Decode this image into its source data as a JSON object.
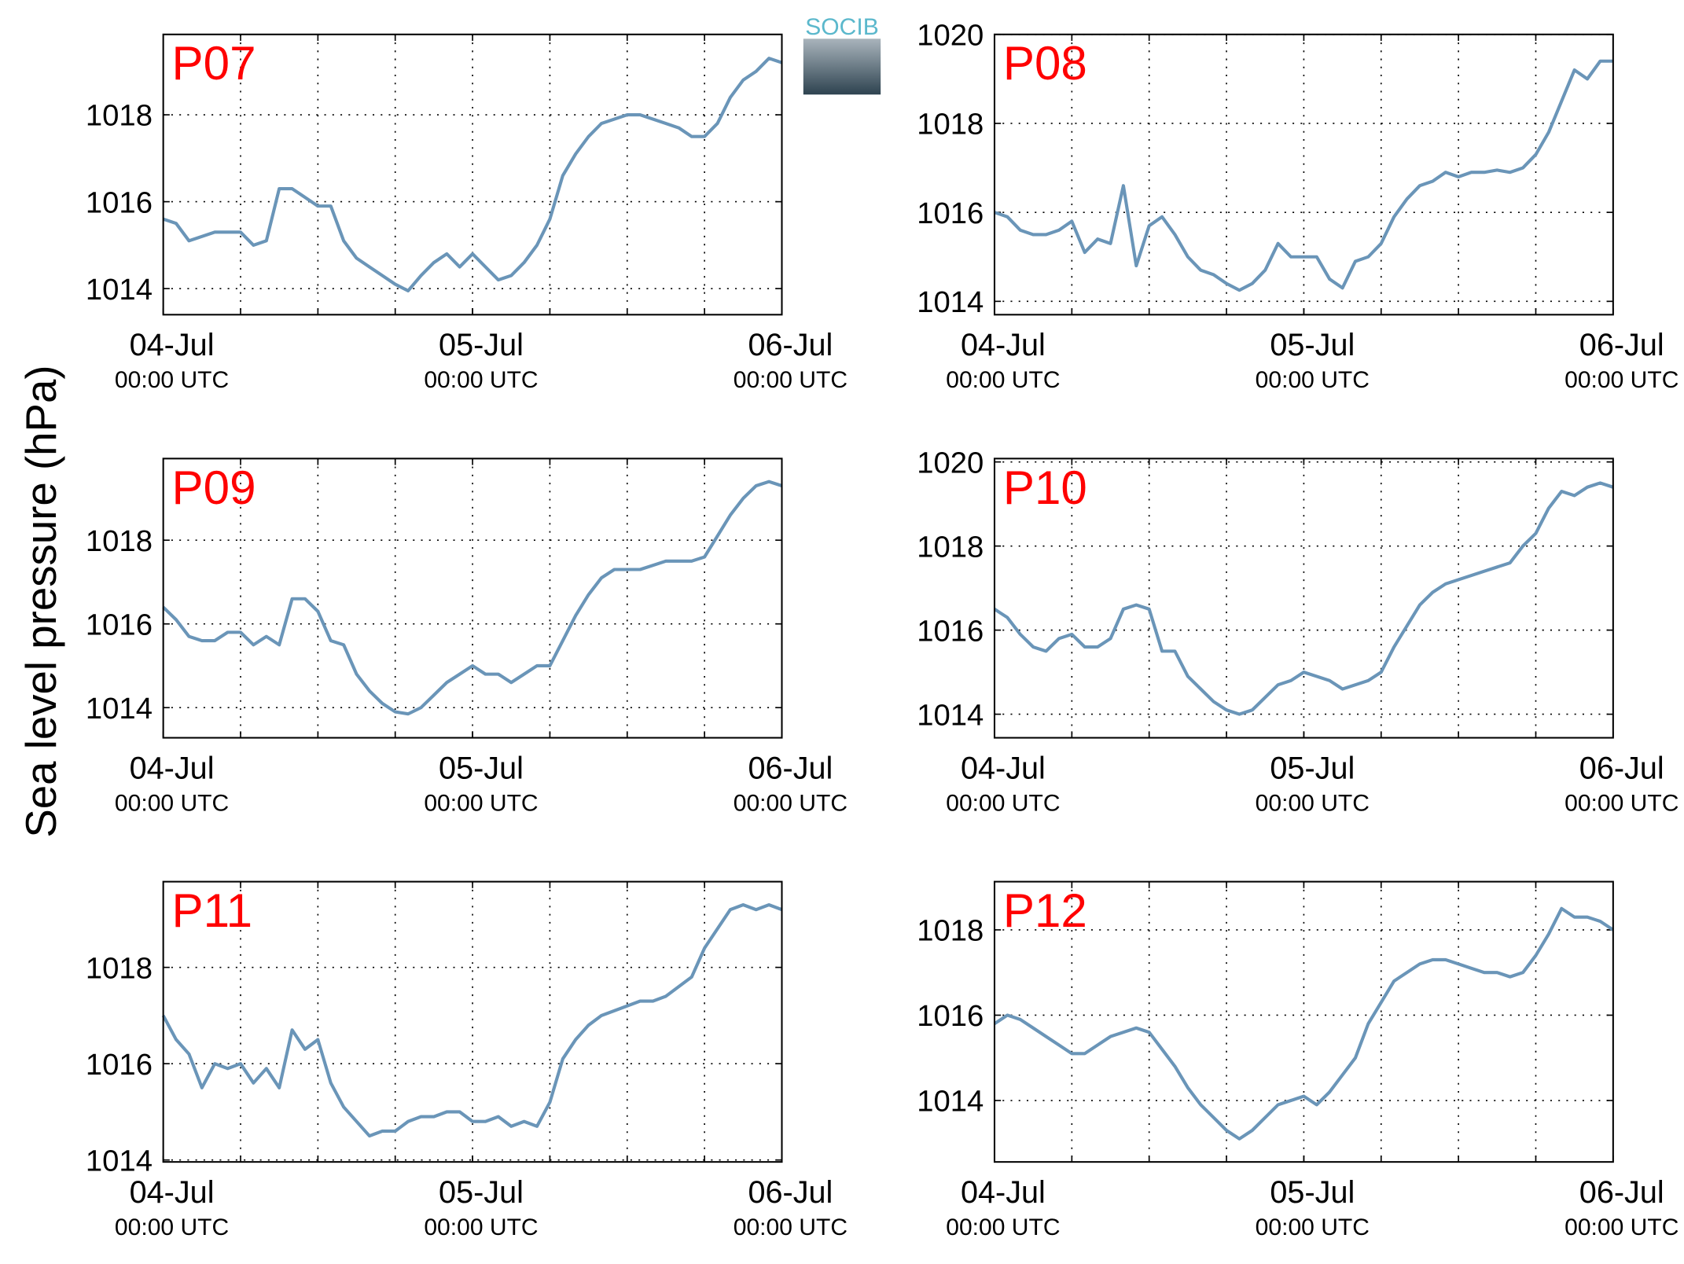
{
  "ylabel": "Sea level pressure (hPa)",
  "logo": "SOCIB",
  "chart_data": [
    {
      "type": "line",
      "title": "P07",
      "color": "#6a95b8",
      "grid": true,
      "x": [
        0,
        1,
        2,
        3,
        4,
        5,
        6,
        7,
        8,
        9,
        10,
        11,
        12,
        13,
        14,
        15,
        16,
        17,
        18,
        19,
        20,
        21,
        22,
        23,
        24,
        25,
        26,
        27,
        28,
        29,
        30,
        31,
        32,
        33,
        34,
        35,
        36,
        37,
        38,
        39,
        40,
        41,
        42,
        43,
        44,
        45,
        46,
        47,
        48
      ],
      "values": [
        1015.6,
        1015.5,
        1015.1,
        1015.2,
        1015.3,
        1015.3,
        1015.3,
        1015.0,
        1015.1,
        1016.3,
        1016.3,
        1016.1,
        1015.9,
        1015.9,
        1015.1,
        1014.7,
        1014.5,
        1014.3,
        1014.1,
        1013.95,
        1014.3,
        1014.6,
        1014.8,
        1014.5,
        1014.8,
        1014.5,
        1014.2,
        1014.3,
        1014.6,
        1015.0,
        1015.6,
        1016.6,
        1017.1,
        1017.5,
        1017.8,
        1017.9,
        1018.0,
        1018.0,
        1017.9,
        1017.8,
        1017.7,
        1017.5,
        1017.5,
        1017.8,
        1018.4,
        1018.8,
        1019.0,
        1019.3,
        1019.2
      ],
      "xlim": [
        0,
        48
      ],
      "xticks": [
        {
          "value": 0,
          "label": "04-Jul",
          "sublabel": "00:00 UTC"
        },
        {
          "value": 24,
          "label": "05-Jul",
          "sublabel": "00:00 UTC"
        },
        {
          "value": 48,
          "label": "06-Jul",
          "sublabel": "00:00 UTC"
        }
      ],
      "xgrid": [
        6,
        12,
        18,
        24,
        30,
        36,
        42
      ],
      "ylim": [
        1013.4,
        1019.85
      ],
      "yticks": [
        1014,
        1016,
        1018
      ]
    },
    {
      "type": "line",
      "title": "P08",
      "color": "#6a95b8",
      "grid": true,
      "x": [
        0,
        1,
        2,
        3,
        4,
        5,
        6,
        7,
        8,
        9,
        10,
        11,
        12,
        13,
        14,
        15,
        16,
        17,
        18,
        19,
        20,
        21,
        22,
        23,
        24,
        25,
        26,
        27,
        28,
        29,
        30,
        31,
        32,
        33,
        34,
        35,
        36,
        37,
        38,
        39,
        40,
        41,
        42,
        43,
        44,
        45,
        46,
        47,
        48
      ],
      "values": [
        1016.0,
        1015.9,
        1015.6,
        1015.5,
        1015.5,
        1015.6,
        1015.8,
        1015.1,
        1015.4,
        1015.3,
        1016.6,
        1014.8,
        1015.7,
        1015.9,
        1015.5,
        1015.0,
        1014.7,
        1014.6,
        1014.4,
        1014.25,
        1014.4,
        1014.7,
        1015.3,
        1015.0,
        1015.0,
        1015.0,
        1014.5,
        1014.3,
        1014.9,
        1015.0,
        1015.3,
        1015.9,
        1016.3,
        1016.6,
        1016.7,
        1016.9,
        1016.8,
        1016.9,
        1016.9,
        1016.95,
        1016.9,
        1017.0,
        1017.3,
        1017.8,
        1018.5,
        1019.2,
        1019.0,
        1019.4,
        1019.4
      ],
      "xlim": [
        0,
        48
      ],
      "xticks": [
        {
          "value": 0,
          "label": "04-Jul",
          "sublabel": "00:00 UTC"
        },
        {
          "value": 24,
          "label": "05-Jul",
          "sublabel": "00:00 UTC"
        },
        {
          "value": 48,
          "label": "06-Jul",
          "sublabel": "00:00 UTC"
        }
      ],
      "xgrid": [
        6,
        12,
        18,
        24,
        30,
        36,
        42
      ],
      "ylim": [
        1013.7,
        1020
      ],
      "yticks": [
        1014,
        1016,
        1018,
        1020
      ]
    },
    {
      "type": "line",
      "title": "P09",
      "color": "#6a95b8",
      "grid": true,
      "x": [
        0,
        1,
        2,
        3,
        4,
        5,
        6,
        7,
        8,
        9,
        10,
        11,
        12,
        13,
        14,
        15,
        16,
        17,
        18,
        19,
        20,
        21,
        22,
        23,
        24,
        25,
        26,
        27,
        28,
        29,
        30,
        31,
        32,
        33,
        34,
        35,
        36,
        37,
        38,
        39,
        40,
        41,
        42,
        43,
        44,
        45,
        46,
        47,
        48
      ],
      "values": [
        1016.4,
        1016.1,
        1015.7,
        1015.6,
        1015.6,
        1015.8,
        1015.8,
        1015.5,
        1015.7,
        1015.5,
        1016.6,
        1016.6,
        1016.3,
        1015.6,
        1015.5,
        1014.8,
        1014.4,
        1014.1,
        1013.9,
        1013.85,
        1014.0,
        1014.3,
        1014.6,
        1014.8,
        1015.0,
        1014.8,
        1014.8,
        1014.6,
        1014.8,
        1015.0,
        1015.0,
        1015.6,
        1016.2,
        1016.7,
        1017.1,
        1017.3,
        1017.3,
        1017.3,
        1017.4,
        1017.5,
        1017.5,
        1017.5,
        1017.6,
        1018.1,
        1018.6,
        1019.0,
        1019.3,
        1019.4,
        1019.3
      ],
      "xlim": [
        0,
        48
      ],
      "xticks": [
        {
          "value": 0,
          "label": "04-Jul",
          "sublabel": "00:00 UTC"
        },
        {
          "value": 24,
          "label": "05-Jul",
          "sublabel": "00:00 UTC"
        },
        {
          "value": 48,
          "label": "06-Jul",
          "sublabel": "00:00 UTC"
        }
      ],
      "xgrid": [
        6,
        12,
        18,
        24,
        30,
        36,
        42
      ],
      "ylim": [
        1013.28,
        1019.95
      ],
      "yticks": [
        1014,
        1016,
        1018
      ]
    },
    {
      "type": "line",
      "title": "P10",
      "color": "#6a95b8",
      "grid": true,
      "x": [
        0,
        1,
        2,
        3,
        4,
        5,
        6,
        7,
        8,
        9,
        10,
        11,
        12,
        13,
        14,
        15,
        16,
        17,
        18,
        19,
        20,
        21,
        22,
        23,
        24,
        25,
        26,
        27,
        28,
        29,
        30,
        31,
        32,
        33,
        34,
        35,
        36,
        37,
        38,
        39,
        40,
        41,
        42,
        43,
        44,
        45,
        46,
        47,
        48
      ],
      "values": [
        1016.5,
        1016.3,
        1015.9,
        1015.6,
        1015.5,
        1015.8,
        1015.9,
        1015.6,
        1015.6,
        1015.8,
        1016.5,
        1016.6,
        1016.5,
        1015.5,
        1015.5,
        1014.9,
        1014.6,
        1014.3,
        1014.1,
        1014.0,
        1014.1,
        1014.4,
        1014.7,
        1014.8,
        1015.0,
        1014.9,
        1014.8,
        1014.6,
        1014.7,
        1014.8,
        1015.0,
        1015.6,
        1016.1,
        1016.6,
        1016.9,
        1017.1,
        1017.2,
        1017.3,
        1017.4,
        1017.5,
        1017.6,
        1018.0,
        1018.3,
        1018.9,
        1019.3,
        1019.2,
        1019.4,
        1019.5,
        1019.4
      ],
      "xlim": [
        0,
        48
      ],
      "xticks": [
        {
          "value": 0,
          "label": "04-Jul",
          "sublabel": "00:00 UTC"
        },
        {
          "value": 24,
          "label": "05-Jul",
          "sublabel": "00:00 UTC"
        },
        {
          "value": 48,
          "label": "06-Jul",
          "sublabel": "00:00 UTC"
        }
      ],
      "xgrid": [
        6,
        12,
        18,
        24,
        30,
        36,
        42
      ],
      "ylim": [
        1013.44,
        1020.08
      ],
      "yticks": [
        1014,
        1016,
        1018,
        1020
      ]
    },
    {
      "type": "line",
      "title": "P11",
      "color": "#6a95b8",
      "grid": true,
      "x": [
        0,
        1,
        2,
        3,
        4,
        5,
        6,
        7,
        8,
        9,
        10,
        11,
        12,
        13,
        14,
        15,
        16,
        17,
        18,
        19,
        20,
        21,
        22,
        23,
        24,
        25,
        26,
        27,
        28,
        29,
        30,
        31,
        32,
        33,
        34,
        35,
        36,
        37,
        38,
        39,
        40,
        41,
        42,
        43,
        44,
        45,
        46,
        47,
        48
      ],
      "values": [
        1017.0,
        1016.5,
        1016.2,
        1015.5,
        1016.0,
        1015.9,
        1016.0,
        1015.6,
        1015.9,
        1015.5,
        1016.7,
        1016.3,
        1016.5,
        1015.6,
        1015.1,
        1014.8,
        1014.5,
        1014.6,
        1014.6,
        1014.8,
        1014.9,
        1014.9,
        1015.0,
        1015.0,
        1014.8,
        1014.8,
        1014.9,
        1014.7,
        1014.8,
        1014.7,
        1015.2,
        1016.1,
        1016.5,
        1016.8,
        1017.0,
        1017.1,
        1017.2,
        1017.3,
        1017.3,
        1017.4,
        1017.6,
        1017.8,
        1018.4,
        1018.8,
        1019.2,
        1019.3,
        1019.2,
        1019.3,
        1019.2
      ],
      "xlim": [
        0,
        48
      ],
      "xticks": [
        {
          "value": 0,
          "label": "04-Jul",
          "sublabel": "00:00 UTC"
        },
        {
          "value": 24,
          "label": "05-Jul",
          "sublabel": "00:00 UTC"
        },
        {
          "value": 48,
          "label": "06-Jul",
          "sublabel": "00:00 UTC"
        }
      ],
      "xgrid": [
        6,
        12,
        18,
        24,
        30,
        36,
        42
      ],
      "ylim": [
        1013.96,
        1019.78
      ],
      "yticks": [
        1014,
        1016,
        1018
      ]
    },
    {
      "type": "line",
      "title": "P12",
      "color": "#6a95b8",
      "grid": true,
      "x": [
        0,
        1,
        2,
        3,
        4,
        5,
        6,
        7,
        8,
        9,
        10,
        11,
        12,
        13,
        14,
        15,
        16,
        17,
        18,
        19,
        20,
        21,
        22,
        23,
        24,
        25,
        26,
        27,
        28,
        29,
        30,
        31,
        32,
        33,
        34,
        35,
        36,
        37,
        38,
        39,
        40,
        41,
        42,
        43,
        44,
        45,
        46,
        47,
        48
      ],
      "values": [
        1015.8,
        1016.0,
        1015.9,
        1015.7,
        1015.5,
        1015.3,
        1015.1,
        1015.1,
        1015.3,
        1015.5,
        1015.6,
        1015.7,
        1015.6,
        1015.2,
        1014.8,
        1014.3,
        1013.9,
        1013.6,
        1013.3,
        1013.1,
        1013.3,
        1013.6,
        1013.9,
        1014.0,
        1014.1,
        1013.9,
        1014.2,
        1014.6,
        1015.0,
        1015.8,
        1016.3,
        1016.8,
        1017.0,
        1017.2,
        1017.3,
        1017.3,
        1017.2,
        1017.1,
        1017.0,
        1017.0,
        1016.9,
        1017.0,
        1017.4,
        1017.9,
        1018.5,
        1018.3,
        1018.3,
        1018.2,
        1018.0
      ],
      "xlim": [
        0,
        48
      ],
      "xticks": [
        {
          "value": 0,
          "label": "04-Jul",
          "sublabel": "00:00 UTC"
        },
        {
          "value": 24,
          "label": "05-Jul",
          "sublabel": "00:00 UTC"
        },
        {
          "value": 48,
          "label": "06-Jul",
          "sublabel": "00:00 UTC"
        }
      ],
      "xgrid": [
        6,
        12,
        18,
        24,
        30,
        36,
        42
      ],
      "ylim": [
        1012.56,
        1019.13
      ],
      "yticks": [
        1014,
        1016,
        1018
      ]
    }
  ]
}
